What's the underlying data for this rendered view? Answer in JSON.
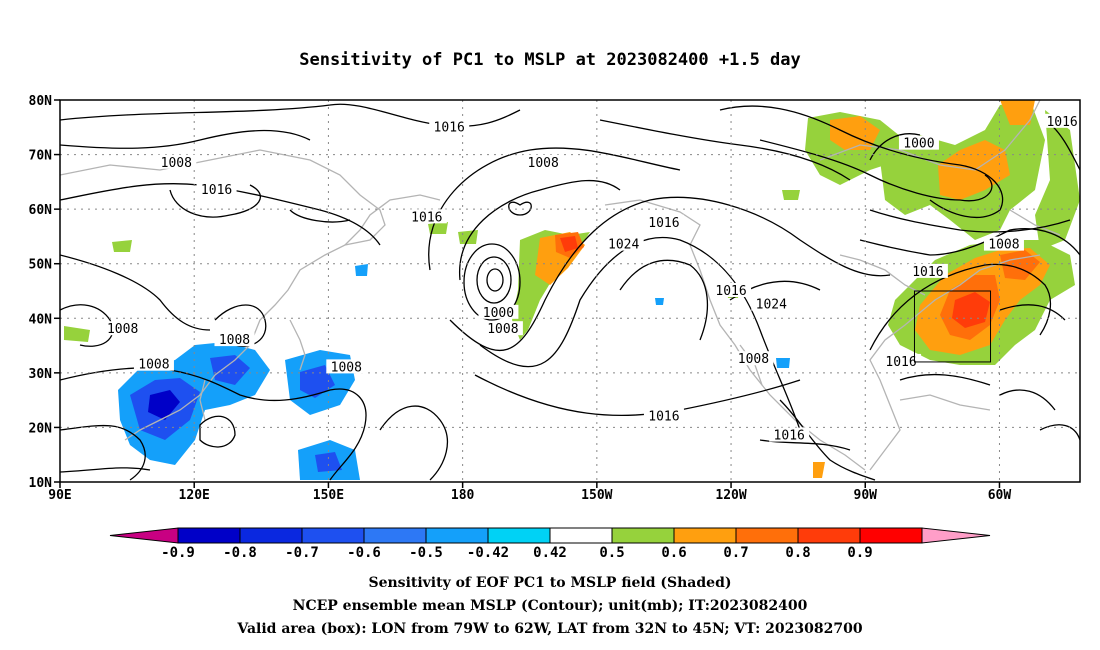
{
  "title": "Sensitivity of PC1 to MSLP at 2023082400 +1.5 day",
  "map": {
    "lat_ticks": [
      {
        "value": 80,
        "label": "80N"
      },
      {
        "value": 70,
        "label": "70N"
      },
      {
        "value": 60,
        "label": "60N"
      },
      {
        "value": 50,
        "label": "50N"
      },
      {
        "value": 40,
        "label": "40N"
      },
      {
        "value": 30,
        "label": "30N"
      },
      {
        "value": 20,
        "label": "20N"
      },
      {
        "value": 10,
        "label": "10N"
      }
    ],
    "lon_ticks": [
      {
        "value": 90,
        "label": "90E"
      },
      {
        "value": 120,
        "label": "120E"
      },
      {
        "value": 150,
        "label": "150E"
      },
      {
        "value": 180,
        "label": "180"
      },
      {
        "value": 210,
        "label": "150W"
      },
      {
        "value": 240,
        "label": "120W"
      },
      {
        "value": 270,
        "label": "90W"
      },
      {
        "value": 300,
        "label": "60W"
      }
    ],
    "lon_range": [
      90,
      318
    ],
    "lat_range": [
      10,
      80
    ],
    "contour_labels": [
      {
        "text": "1016",
        "lon": 177,
        "lat": 75
      },
      {
        "text": "1008",
        "lon": 116,
        "lat": 68.5
      },
      {
        "text": "1016",
        "lon": 125,
        "lat": 63.5
      },
      {
        "text": "1008",
        "lon": 198,
        "lat": 68.5
      },
      {
        "text": "1016",
        "lon": 172,
        "lat": 58.5
      },
      {
        "text": "1016",
        "lon": 225,
        "lat": 57.5
      },
      {
        "text": "1024",
        "lon": 216,
        "lat": 53.5
      },
      {
        "text": "1016",
        "lon": 240,
        "lat": 45
      },
      {
        "text": "1024",
        "lon": 249,
        "lat": 42.5
      },
      {
        "text": "1000",
        "lon": 188,
        "lat": 41
      },
      {
        "text": "1008",
        "lon": 189,
        "lat": 38
      },
      {
        "text": "1008",
        "lon": 104,
        "lat": 38
      },
      {
        "text": "1008",
        "lon": 129,
        "lat": 36
      },
      {
        "text": "1008",
        "lon": 111,
        "lat": 31.5
      },
      {
        "text": "1008",
        "lon": 154,
        "lat": 31
      },
      {
        "text": "1016",
        "lon": 225,
        "lat": 22
      },
      {
        "text": "1008",
        "lon": 245,
        "lat": 32.5
      },
      {
        "text": "1016",
        "lon": 253,
        "lat": 18.5
      },
      {
        "text": "1000",
        "lon": 282,
        "lat": 72
      },
      {
        "text": "1008",
        "lon": 301,
        "lat": 53.5
      },
      {
        "text": "1016",
        "lon": 284,
        "lat": 48.5
      },
      {
        "text": "1016",
        "lon": 314,
        "lat": 76
      },
      {
        "text": "1016",
        "lon": 278,
        "lat": 32
      }
    ],
    "valid_area": {
      "lon_min": 281,
      "lon_max": 298,
      "lat_min": 32,
      "lat_max": 45
    }
  },
  "colorbar": {
    "levels": [
      "-0.9",
      "-0.8",
      "-0.7",
      "-0.6",
      "-0.5",
      "-0.42",
      "0.42",
      "0.5",
      "0.6",
      "0.7",
      "0.8",
      "0.9"
    ],
    "colors": [
      "#0000c8",
      "#0a28e0",
      "#1e50f0",
      "#2d78f5",
      "#14a0fa",
      "#00d2f5",
      "#ffffff",
      "#96d23c",
      "#ff9f0f",
      "#ff6f0a",
      "#ff3c0a",
      "#ff0000"
    ],
    "under_color": "#c80082",
    "over_color": "#ff9ec8"
  },
  "caption": {
    "line1": "Sensitivity of EOF PC1 to MSLP field (Shaded)",
    "line2": "NCEP ensemble mean MSLP (Contour); unit(mb); IT:2023082400",
    "line3": "Valid area (box): LON from 79W to 62W, LAT from 32N to 45N; VT: 2023082700"
  }
}
